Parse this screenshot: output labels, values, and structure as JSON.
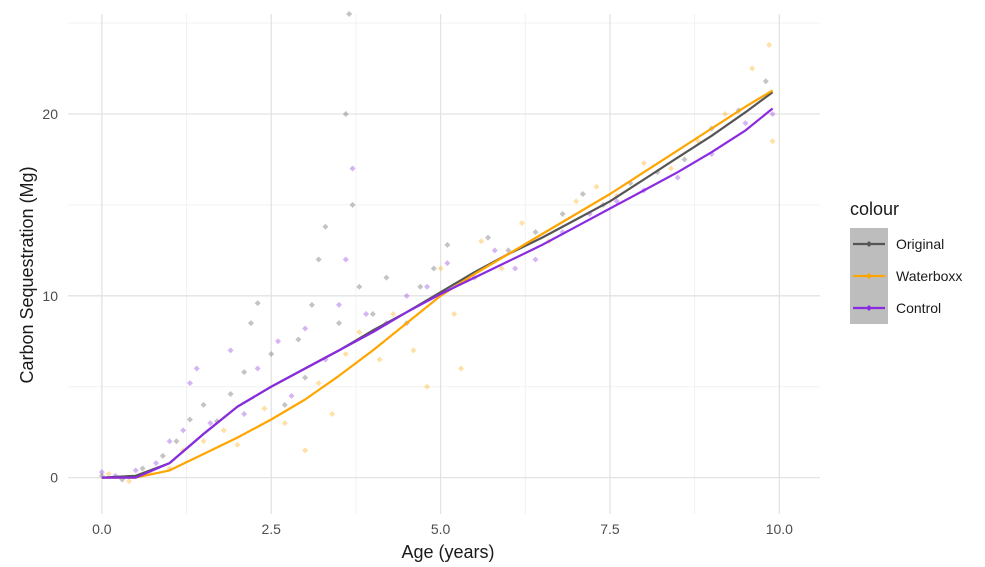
{
  "chart_data": {
    "type": "scatter",
    "title": "",
    "xlabel": "Age (years)",
    "ylabel": "Carbon Sequestration (Mg)",
    "xlim": [
      -0.5,
      10.6
    ],
    "ylim": [
      -2,
      25.5
    ],
    "x_ticks": [
      0.0,
      2.5,
      5.0,
      7.5,
      10.0
    ],
    "x_tick_labels": [
      "0.0",
      "2.5",
      "5.0",
      "7.5",
      "10.0"
    ],
    "y_ticks": [
      0,
      10,
      20
    ],
    "y_tick_labels": [
      "0",
      "10",
      "20"
    ],
    "grid": true,
    "legend": {
      "title": "colour",
      "placement": "right"
    },
    "series": [
      {
        "name": "Original",
        "color": "#555555",
        "trend": [
          [
            0,
            0.0
          ],
          [
            0.5,
            0.1
          ],
          [
            1.0,
            0.8
          ],
          [
            1.5,
            2.4
          ],
          [
            2.0,
            3.9
          ],
          [
            2.5,
            5.0
          ],
          [
            3.0,
            6.0
          ],
          [
            3.5,
            7.0
          ],
          [
            4.0,
            8.1
          ],
          [
            4.5,
            9.1
          ],
          [
            5.0,
            10.2
          ],
          [
            5.5,
            11.3
          ],
          [
            6.0,
            12.3
          ],
          [
            6.5,
            13.2
          ],
          [
            7.0,
            14.2
          ],
          [
            7.5,
            15.2
          ],
          [
            8.0,
            16.4
          ],
          [
            8.5,
            17.6
          ],
          [
            9.0,
            18.8
          ],
          [
            9.5,
            20.1
          ],
          [
            9.9,
            21.2
          ]
        ],
        "points": [
          [
            0.0,
            0.1
          ],
          [
            0.3,
            -0.1
          ],
          [
            0.6,
            0.5
          ],
          [
            0.9,
            1.2
          ],
          [
            1.1,
            2.0
          ],
          [
            1.3,
            3.2
          ],
          [
            1.5,
            4.0
          ],
          [
            1.7,
            3.1
          ],
          [
            1.9,
            4.6
          ],
          [
            2.1,
            5.8
          ],
          [
            2.2,
            8.5
          ],
          [
            2.3,
            9.6
          ],
          [
            2.5,
            6.8
          ],
          [
            2.7,
            4.0
          ],
          [
            2.9,
            7.6
          ],
          [
            3.0,
            5.5
          ],
          [
            3.1,
            9.5
          ],
          [
            3.2,
            12.0
          ],
          [
            3.3,
            13.8
          ],
          [
            3.5,
            8.5
          ],
          [
            3.6,
            20.0
          ],
          [
            3.65,
            25.5
          ],
          [
            3.7,
            15.0
          ],
          [
            3.8,
            10.5
          ],
          [
            4.0,
            9.0
          ],
          [
            4.2,
            11.0
          ],
          [
            4.5,
            8.5
          ],
          [
            4.7,
            10.5
          ],
          [
            4.9,
            11.5
          ],
          [
            5.1,
            12.8
          ],
          [
            5.4,
            11.0
          ],
          [
            5.7,
            13.2
          ],
          [
            6.0,
            12.5
          ],
          [
            6.4,
            13.5
          ],
          [
            6.8,
            14.5
          ],
          [
            7.1,
            15.6
          ],
          [
            7.4,
            15.0
          ],
          [
            7.8,
            16.2
          ],
          [
            8.2,
            16.8
          ],
          [
            8.6,
            17.5
          ],
          [
            9.0,
            19.2
          ],
          [
            9.4,
            20.2
          ],
          [
            9.8,
            21.8
          ]
        ]
      },
      {
        "name": "Waterboxx",
        "color": "#FFA500",
        "trend": [
          [
            0,
            0.0
          ],
          [
            0.5,
            0.0
          ],
          [
            1.0,
            0.4
          ],
          [
            1.5,
            1.3
          ],
          [
            2.0,
            2.2
          ],
          [
            2.5,
            3.2
          ],
          [
            3.0,
            4.3
          ],
          [
            3.5,
            5.6
          ],
          [
            4.0,
            7.0
          ],
          [
            4.5,
            8.5
          ],
          [
            5.0,
            10.0
          ],
          [
            5.5,
            11.2
          ],
          [
            6.0,
            12.3
          ],
          [
            6.5,
            13.4
          ],
          [
            7.0,
            14.5
          ],
          [
            7.5,
            15.6
          ],
          [
            8.0,
            16.8
          ],
          [
            8.5,
            18.0
          ],
          [
            9.0,
            19.2
          ],
          [
            9.5,
            20.4
          ],
          [
            9.9,
            21.3
          ]
        ],
        "points": [
          [
            0.1,
            0.2
          ],
          [
            0.4,
            -0.2
          ],
          [
            0.7,
            0.3
          ],
          [
            1.0,
            0.5
          ],
          [
            1.2,
            1.5
          ],
          [
            1.5,
            2.0
          ],
          [
            1.8,
            2.6
          ],
          [
            2.0,
            1.8
          ],
          [
            2.4,
            3.8
          ],
          [
            2.7,
            3.0
          ],
          [
            3.0,
            1.5
          ],
          [
            3.2,
            5.2
          ],
          [
            3.4,
            3.5
          ],
          [
            3.6,
            6.8
          ],
          [
            3.8,
            8.0
          ],
          [
            4.1,
            6.5
          ],
          [
            4.3,
            9.0
          ],
          [
            4.6,
            7.0
          ],
          [
            4.8,
            5.0
          ],
          [
            5.0,
            11.5
          ],
          [
            5.2,
            9.0
          ],
          [
            5.3,
            6.0
          ],
          [
            5.6,
            13.0
          ],
          [
            5.9,
            11.5
          ],
          [
            6.2,
            14.0
          ],
          [
            6.6,
            13.0
          ],
          [
            7.0,
            15.2
          ],
          [
            7.3,
            16.0
          ],
          [
            7.6,
            15.5
          ],
          [
            8.0,
            17.3
          ],
          [
            8.4,
            17.0
          ],
          [
            8.8,
            18.5
          ],
          [
            9.2,
            20.0
          ],
          [
            9.6,
            22.5
          ],
          [
            9.85,
            23.8
          ],
          [
            9.9,
            18.5
          ]
        ]
      },
      {
        "name": "Control",
        "color": "#8A2BE2",
        "trend": [
          [
            0,
            0.0
          ],
          [
            0.5,
            0.0
          ],
          [
            1.0,
            0.8
          ],
          [
            1.5,
            2.4
          ],
          [
            2.0,
            3.9
          ],
          [
            2.5,
            5.0
          ],
          [
            3.0,
            6.0
          ],
          [
            3.5,
            7.0
          ],
          [
            4.0,
            8.0
          ],
          [
            4.5,
            9.1
          ],
          [
            5.0,
            10.1
          ],
          [
            5.5,
            11.0
          ],
          [
            6.0,
            11.9
          ],
          [
            6.5,
            12.8
          ],
          [
            7.0,
            13.8
          ],
          [
            7.5,
            14.8
          ],
          [
            8.0,
            15.8
          ],
          [
            8.5,
            16.8
          ],
          [
            9.0,
            17.9
          ],
          [
            9.5,
            19.1
          ],
          [
            9.9,
            20.3
          ]
        ],
        "points": [
          [
            0.0,
            0.3
          ],
          [
            0.2,
            0.1
          ],
          [
            0.5,
            0.4
          ],
          [
            0.8,
            0.8
          ],
          [
            1.0,
            2.0
          ],
          [
            1.2,
            2.6
          ],
          [
            1.3,
            5.2
          ],
          [
            1.4,
            6.0
          ],
          [
            1.6,
            3.0
          ],
          [
            1.9,
            7.0
          ],
          [
            2.1,
            3.5
          ],
          [
            2.3,
            6.0
          ],
          [
            2.6,
            7.5
          ],
          [
            2.8,
            4.5
          ],
          [
            3.0,
            8.2
          ],
          [
            3.3,
            6.5
          ],
          [
            3.5,
            9.5
          ],
          [
            3.6,
            12.0
          ],
          [
            3.7,
            17.0
          ],
          [
            3.9,
            9.0
          ],
          [
            4.2,
            8.5
          ],
          [
            4.5,
            10.0
          ],
          [
            4.8,
            10.5
          ],
          [
            5.1,
            11.8
          ],
          [
            5.5,
            11.0
          ],
          [
            5.8,
            12.5
          ],
          [
            6.1,
            11.5
          ],
          [
            6.4,
            12.0
          ],
          [
            6.8,
            13.5
          ],
          [
            7.2,
            14.5
          ],
          [
            7.6,
            15.2
          ],
          [
            8.0,
            15.8
          ],
          [
            8.5,
            16.5
          ],
          [
            9.0,
            17.8
          ],
          [
            9.5,
            19.5
          ],
          [
            9.9,
            20.0
          ]
        ]
      }
    ]
  }
}
